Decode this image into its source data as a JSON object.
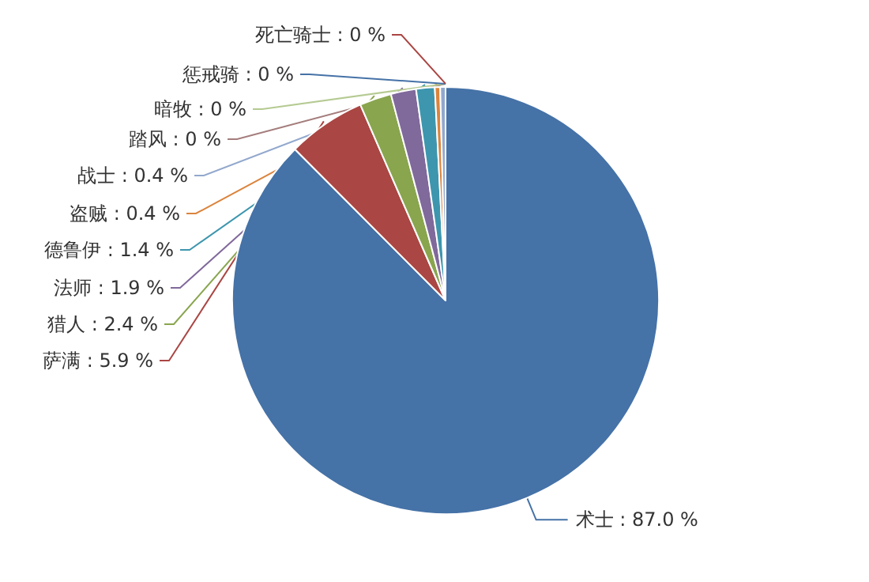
{
  "chart_data": {
    "type": "pie",
    "categories": [
      "术士",
      "萨满",
      "猎人",
      "法师",
      "德鲁伊",
      "盗贼",
      "战士",
      "踏风",
      "暗牧",
      "惩戒骑",
      "死亡骑士"
    ],
    "values": [
      87.0,
      5.9,
      2.4,
      1.9,
      1.4,
      0.4,
      0.4,
      0,
      0,
      0,
      0
    ],
    "value_labels": [
      ": 87.0 %",
      ": 5.9 %",
      ": 2.4 %",
      ": 1.9 %",
      ": 1.4 %",
      ": 0.4 %",
      ": 0.4 %",
      ": 0 %",
      ": 0 %",
      ": 0 %",
      ": 0 %"
    ],
    "colors": [
      "#4572a7",
      "#aa4643",
      "#89a54e",
      "#80699b",
      "#3d96ae",
      "#db843d",
      "#92a8cd",
      "#a47d7c",
      "#b5ca92",
      "#4572a7",
      "#aa4643"
    ],
    "legend": false
  }
}
